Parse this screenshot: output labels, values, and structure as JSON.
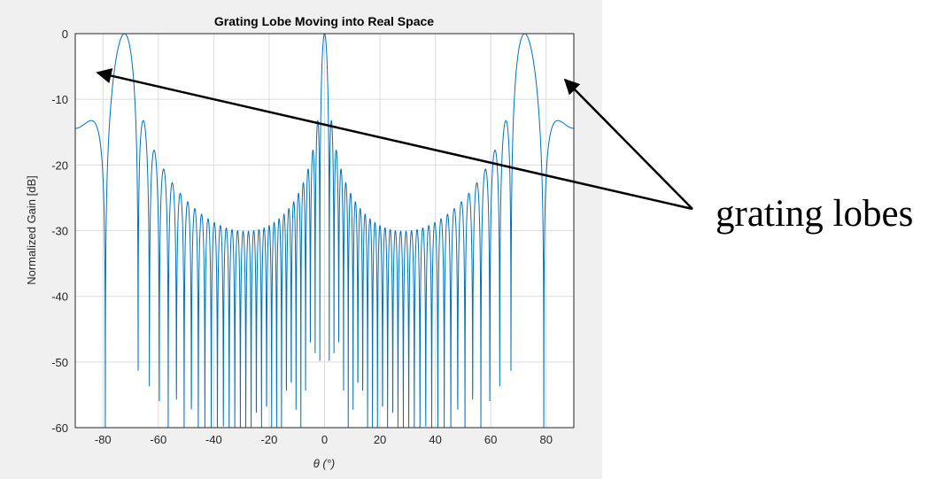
{
  "chart_data": {
    "type": "line",
    "title": "Grating Lobe Moving into Real Space",
    "xlabel": "θ (°)",
    "ylabel": "Normalized Gain [dB]",
    "xlim": [
      -90,
      90
    ],
    "ylim": [
      -60,
      0
    ],
    "xticks": [
      -80,
      -60,
      -40,
      -20,
      0,
      20,
      40,
      60,
      80
    ],
    "yticks": [
      0,
      -10,
      -20,
      -30,
      -40,
      -50,
      -60
    ],
    "grid": true,
    "series": [
      {
        "color": "#0072bd",
        "model": {
          "elements": 32,
          "spacing_wavelengths": 1.05,
          "floor_db": -60
        }
      }
    ]
  },
  "annotation": {
    "label": "grating lobes",
    "arrow_color": "#000000"
  }
}
